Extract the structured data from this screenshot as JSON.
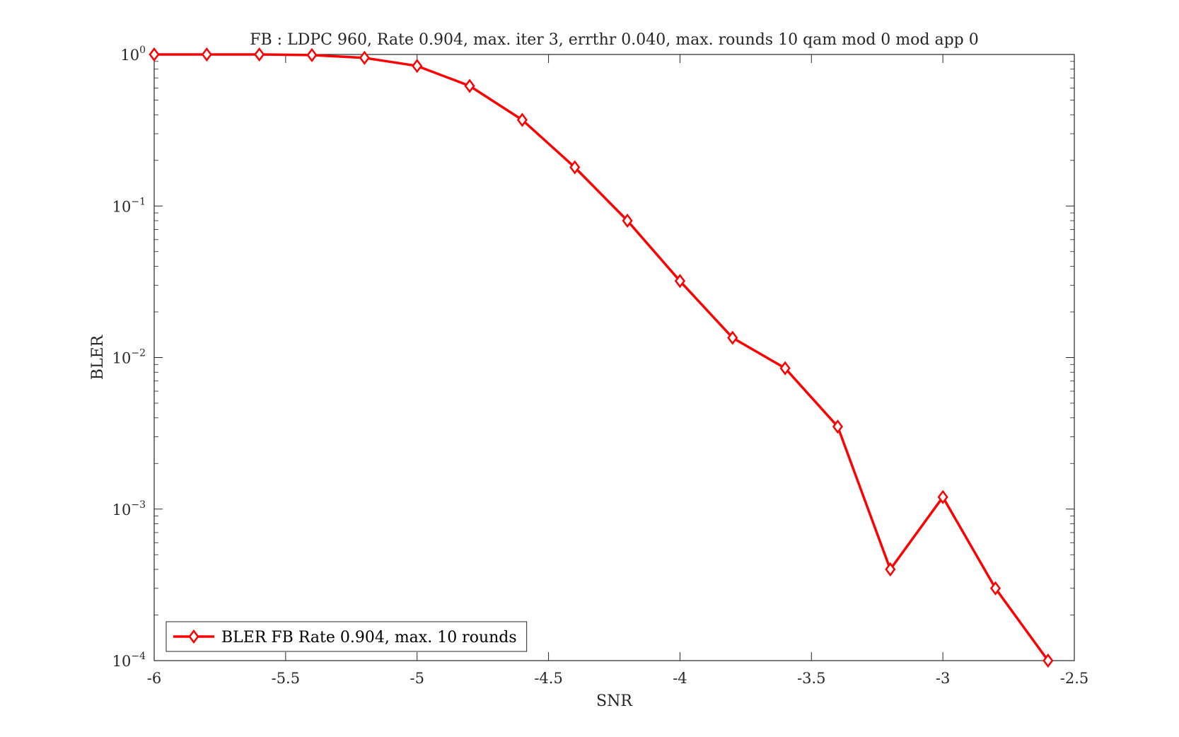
{
  "chart_data": {
    "type": "line",
    "title": "FB : LDPC 960, Rate 0.904, max. iter 3, errthr 0.040, max. rounds 10 qam mod 0 mod app 0",
    "xlabel": "SNR",
    "ylabel": "BLER",
    "xlim": [
      -6,
      -2.5
    ],
    "ylim": [
      0.0001,
      1
    ],
    "yscale": "log",
    "grid": false,
    "legend_position": "bottom-left",
    "x_ticks": [
      "-6",
      "-5.5",
      "-5",
      "-4.5",
      "-4",
      "-3.5",
      "-3",
      "-2.5"
    ],
    "y_ticks": [
      {
        "base": "10",
        "exp": "−4"
      },
      {
        "base": "10",
        "exp": "−3"
      },
      {
        "base": "10",
        "exp": "−2"
      },
      {
        "base": "10",
        "exp": "−1"
      },
      {
        "base": "10",
        "exp": "0"
      }
    ],
    "series": [
      {
        "name": "BLER FB Rate 0.904, max. 10 rounds",
        "color": "#ff0000",
        "marker": "diamond",
        "x": [
          -6,
          -5.8,
          -5.6,
          -5.4,
          -5.2,
          -5,
          -4.8,
          -4.6,
          -4.4,
          -4.2,
          -4,
          -3.8,
          -3.6,
          -3.4,
          -3.2,
          -3,
          -2.8,
          -2.6
        ],
        "y": [
          1,
          1,
          1,
          0.99,
          0.95,
          0.84,
          0.62,
          0.37,
          0.18,
          0.08,
          0.032,
          0.0135,
          0.0085,
          0.0035,
          0.0004,
          0.0012,
          0.0003,
          0.0001
        ]
      }
    ]
  }
}
